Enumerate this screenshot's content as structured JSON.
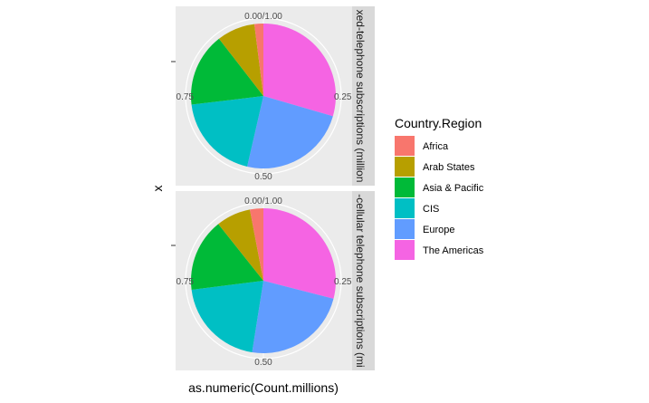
{
  "chart_data": {
    "type": "pie",
    "xlabel": "as.numeric(Count.millions)",
    "ylabel": "x",
    "angle_ticks": [
      "0.00/1.00",
      "0.25",
      "0.50",
      "0.75"
    ],
    "legend": {
      "title": "Country.Region",
      "position": "right",
      "items": [
        "Africa",
        "Arab States",
        "Asia & Pacific",
        "CIS",
        "Europe",
        "The Americas"
      ]
    },
    "colors": {
      "Africa": "#F8766D",
      "Arab States": "#B79F00",
      "Asia & Pacific": "#00BA38",
      "CIS": "#00BFC4",
      "Europe": "#619CFF",
      "The Americas": "#F564E3"
    },
    "panels": [
      {
        "strip": "Fixed-telephone subscriptions (millions)",
        "strip_visible": "xed-telephone subscriptions (million",
        "slices": [
          {
            "label": "The Americas",
            "value": 0.295
          },
          {
            "label": "Europe",
            "value": 0.241
          },
          {
            "label": "CIS",
            "value": 0.195
          },
          {
            "label": "Asia & Pacific",
            "value": 0.164
          },
          {
            "label": "Arab States",
            "value": 0.085
          },
          {
            "label": "Africa",
            "value": 0.02
          }
        ]
      },
      {
        "strip": "Mobile-cellular telephone subscriptions (millions)",
        "strip_visible": "-cellular telephone subscriptions (mi",
        "slices": [
          {
            "label": "The Americas",
            "value": 0.29
          },
          {
            "label": "Europe",
            "value": 0.235
          },
          {
            "label": "CIS",
            "value": 0.205
          },
          {
            "label": "Asia & Pacific",
            "value": 0.163
          },
          {
            "label": "Arab States",
            "value": 0.077
          },
          {
            "label": "Africa",
            "value": 0.03
          }
        ]
      }
    ]
  }
}
